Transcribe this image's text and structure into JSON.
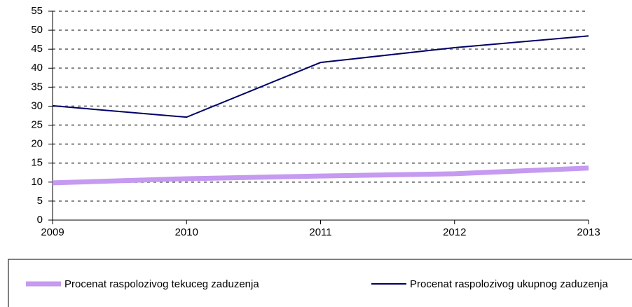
{
  "chart_data": {
    "type": "line",
    "categories": [
      "2009",
      "2010",
      "2011",
      "2012",
      "2013"
    ],
    "series": [
      {
        "name": "Procenat raspolozivog tekuceg zaduzenja",
        "color": "#c59af0",
        "values": [
          9.8,
          10.9,
          11.6,
          12.2,
          13.7
        ]
      },
      {
        "name": "Procenat raspolozivog ukupnog zaduzenja",
        "color": "#000066",
        "values": [
          30.1,
          27.1,
          41.5,
          45.4,
          48.5
        ]
      }
    ],
    "ylim": [
      0,
      55
    ],
    "yticks": [
      0,
      5,
      10,
      15,
      20,
      25,
      30,
      35,
      40,
      45,
      50,
      55
    ],
    "grid": true,
    "legend": "bottom"
  }
}
